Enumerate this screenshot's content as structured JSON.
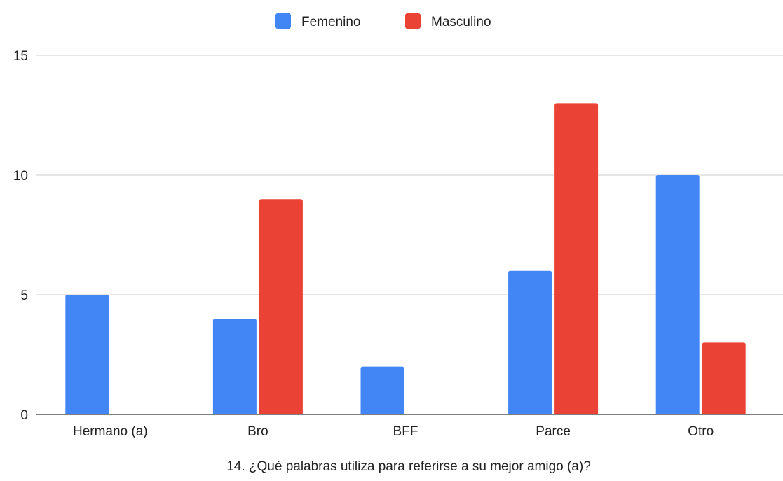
{
  "chart_data": {
    "type": "bar",
    "title": "",
    "xlabel": "14. ¿Qué palabras utiliza para referirse a su mejor amigo (a)?",
    "ylabel": "",
    "categories": [
      "Hermano (a)",
      "Bro",
      "BFF",
      "Parce",
      "Otro"
    ],
    "series": [
      {
        "name": "Femenino",
        "color": "#4285f4",
        "values": [
          5,
          4,
          2,
          6,
          10
        ]
      },
      {
        "name": "Masculino",
        "color": "#ea4335",
        "values": [
          0,
          9,
          0,
          13,
          3
        ]
      }
    ],
    "ylim": [
      0,
      15
    ],
    "yticks": [
      0,
      5,
      10,
      15
    ],
    "grid": true,
    "legend_position": "top-center"
  }
}
